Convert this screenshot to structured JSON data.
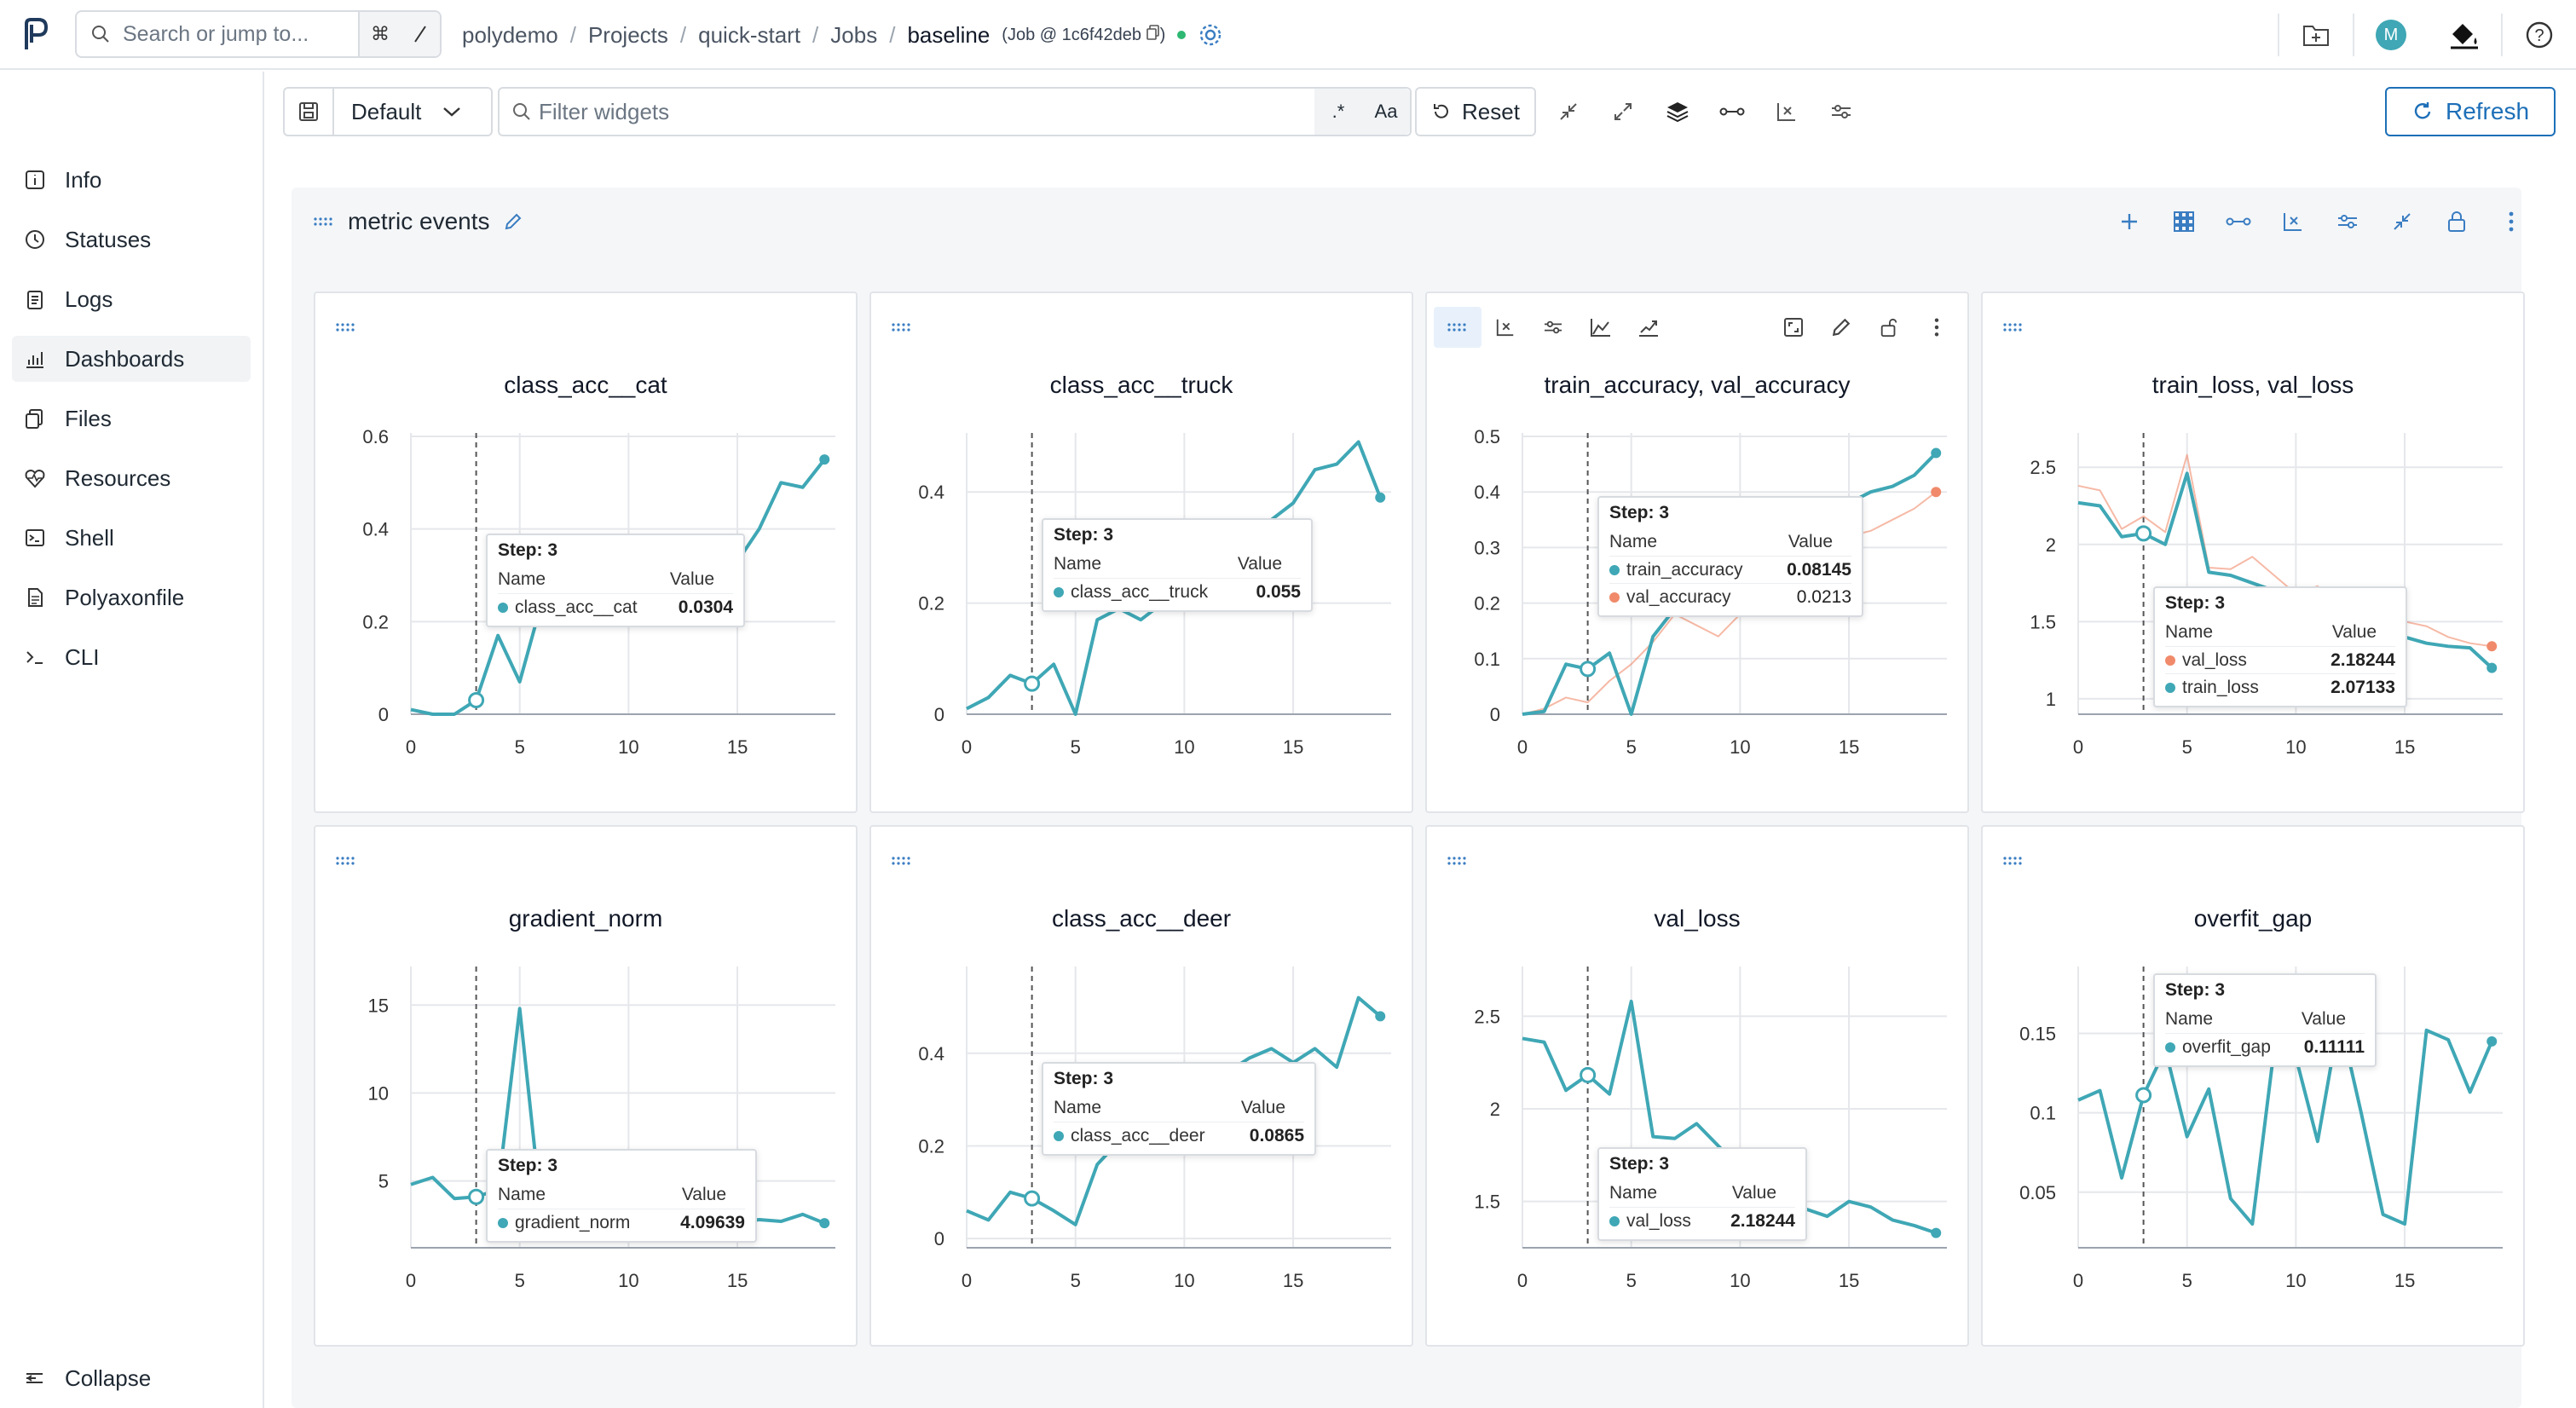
{
  "header": {
    "search_placeholder": "Search or jump to...",
    "search_shortcut": "⌘",
    "breadcrumb": [
      "polydemo",
      "Projects",
      "quick-start",
      "Jobs"
    ],
    "current": "baseline",
    "job_tag": "(Job @ 1c6f42deb",
    "avatar_letter": "M"
  },
  "sidebar": {
    "items": [
      {
        "label": "Info",
        "icon": "info-icon"
      },
      {
        "label": "Statuses",
        "icon": "clock-icon"
      },
      {
        "label": "Logs",
        "icon": "clipboard-icon"
      },
      {
        "label": "Dashboards",
        "icon": "chart-icon"
      },
      {
        "label": "Files",
        "icon": "files-icon"
      },
      {
        "label": "Resources",
        "icon": "heart-pulse-icon"
      },
      {
        "label": "Shell",
        "icon": "terminal-icon"
      },
      {
        "label": "Polyaxonfile",
        "icon": "document-icon"
      },
      {
        "label": "CLI",
        "icon": "prompt-icon"
      }
    ],
    "active": "Dashboards",
    "collapse_label": "Collapse"
  },
  "toolbar": {
    "view_select": "Default",
    "filter_placeholder": "Filter widgets",
    "case_label": "Aa",
    "reset_label": "Reset",
    "refresh_label": "Refresh"
  },
  "section": {
    "title": "metric events"
  },
  "colors": {
    "teal": "#3fa7b5",
    "salmon": "#f08a6a",
    "accent": "#1d6fb8"
  },
  "widgets": [
    {
      "title": "class_acc__cat",
      "tooltip": {
        "step": "Step: 3",
        "name_header": "Name",
        "value_header": "Value",
        "rows": [
          {
            "name": "class_acc__cat",
            "value": "0.0304",
            "color": "#3fa7b5"
          }
        ]
      },
      "chart_data": {
        "type": "line",
        "x": [
          0,
          1,
          2,
          3,
          4,
          5,
          6,
          7,
          8,
          9,
          10,
          11,
          12,
          13,
          14,
          15,
          16,
          17,
          18,
          19
        ],
        "xticks": [
          "0",
          "5",
          "10",
          "15"
        ],
        "yticks": [
          "0",
          "0.2",
          "0.4",
          "0.6"
        ],
        "ylim": [
          0,
          0.6
        ],
        "series": [
          {
            "name": "class_acc__cat",
            "color": "#3fa7b5",
            "values": [
              0.01,
              0.0,
              0.0,
              0.0304,
              0.17,
              0.07,
              0.24,
              0.22,
              0.25,
              0.26,
              0.28,
              0.27,
              0.3,
              0.28,
              0.3,
              0.33,
              0.4,
              0.5,
              0.49,
              0.55
            ]
          }
        ]
      }
    },
    {
      "title": "class_acc__truck",
      "tooltip": {
        "step": "Step: 3",
        "name_header": "Name",
        "value_header": "Value",
        "rows": [
          {
            "name": "class_acc__truck",
            "value": "0.055",
            "color": "#3fa7b5"
          }
        ]
      },
      "chart_data": {
        "type": "line",
        "x": [
          0,
          1,
          2,
          3,
          4,
          5,
          6,
          7,
          8,
          9,
          10,
          11,
          12,
          13,
          14,
          15,
          16,
          17,
          18,
          19
        ],
        "xticks": [
          "0",
          "5",
          "10",
          "15"
        ],
        "yticks": [
          "0",
          "0.2",
          "0.4"
        ],
        "ylim": [
          0,
          0.5
        ],
        "series": [
          {
            "name": "class_acc__truck",
            "color": "#3fa7b5",
            "values": [
              0.01,
              0.03,
              0.07,
              0.055,
              0.09,
              0.0,
              0.17,
              0.19,
              0.17,
              0.2,
              0.22,
              0.25,
              0.27,
              0.3,
              0.35,
              0.38,
              0.44,
              0.45,
              0.49,
              0.39
            ]
          }
        ]
      }
    },
    {
      "title": "train_accuracy, val_accuracy",
      "tooltip": {
        "step": "Step: 3",
        "name_header": "Name",
        "value_header": "Value",
        "rows": [
          {
            "name": "train_accuracy",
            "value": "0.08145",
            "color": "#3fa7b5"
          },
          {
            "name": "val_accuracy",
            "value": "0.0213",
            "color": "#f08a6a"
          }
        ]
      },
      "chart_data": {
        "type": "line",
        "x": [
          0,
          1,
          2,
          3,
          4,
          5,
          6,
          7,
          8,
          9,
          10,
          11,
          12,
          13,
          14,
          15,
          16,
          17,
          18,
          19
        ],
        "xticks": [
          "0",
          "5",
          "10",
          "15"
        ],
        "yticks": [
          "0",
          "0.1",
          "0.2",
          "0.3",
          "0.4",
          "0.5"
        ],
        "ylim": [
          0,
          0.5
        ],
        "series": [
          {
            "name": "train_accuracy",
            "color": "#3fa7b5",
            "values": [
              0.0,
              0.005,
              0.09,
              0.08145,
              0.11,
              0.0,
              0.14,
              0.19,
              0.22,
              0.25,
              0.27,
              0.29,
              0.31,
              0.33,
              0.36,
              0.38,
              0.4,
              0.41,
              0.43,
              0.47
            ]
          },
          {
            "name": "val_accuracy",
            "color": "#f08a6a",
            "values": [
              0.0,
              0.01,
              0.03,
              0.0213,
              0.06,
              0.09,
              0.13,
              0.18,
              0.16,
              0.14,
              0.18,
              0.22,
              0.25,
              0.28,
              0.3,
              0.32,
              0.33,
              0.35,
              0.37,
              0.4
            ]
          }
        ]
      }
    },
    {
      "title": "train_loss, val_loss",
      "tooltip": {
        "step": "Step: 3",
        "name_header": "Name",
        "value_header": "Value",
        "rows": [
          {
            "name": "val_loss",
            "value": "2.18244",
            "color": "#f08a6a"
          },
          {
            "name": "train_loss",
            "value": "2.07133",
            "color": "#3fa7b5"
          }
        ]
      },
      "chart_data": {
        "type": "line",
        "x": [
          0,
          1,
          2,
          3,
          4,
          5,
          6,
          7,
          8,
          9,
          10,
          11,
          12,
          13,
          14,
          15,
          16,
          17,
          18,
          19
        ],
        "xticks": [
          "0",
          "5",
          "10",
          "15"
        ],
        "yticks": [
          "1",
          "1.5",
          "2",
          "2.5"
        ],
        "ylim": [
          0.9,
          2.7
        ],
        "series": [
          {
            "name": "val_loss",
            "color": "#f08a6a",
            "values": [
              2.38,
              2.35,
              2.1,
              2.18244,
              2.08,
              2.58,
              1.85,
              1.84,
              1.92,
              1.8,
              1.68,
              1.73,
              1.55,
              1.46,
              1.42,
              1.5,
              1.47,
              1.4,
              1.36,
              1.34
            ]
          },
          {
            "name": "train_loss",
            "color": "#3fa7b5",
            "values": [
              2.27,
              2.25,
              2.05,
              2.07133,
              2.0,
              2.46,
              1.82,
              1.8,
              1.75,
              1.7,
              1.63,
              1.6,
              1.55,
              1.5,
              1.45,
              1.4,
              1.36,
              1.34,
              1.33,
              1.2
            ]
          }
        ]
      }
    },
    {
      "title": "gradient_norm",
      "tooltip": {
        "step": "Step: 3",
        "name_header": "Name",
        "value_header": "Value",
        "rows": [
          {
            "name": "gradient_norm",
            "value": "4.09639",
            "color": "#3fa7b5"
          }
        ]
      },
      "chart_data": {
        "type": "line",
        "x": [
          0,
          1,
          2,
          3,
          4,
          5,
          6,
          7,
          8,
          9,
          10,
          11,
          12,
          13,
          14,
          15,
          16,
          17,
          18,
          19
        ],
        "xticks": [
          "0",
          "5",
          "10",
          "15"
        ],
        "yticks": [
          "5",
          "10",
          "15"
        ],
        "ylim": [
          1.2,
          17
        ],
        "series": [
          {
            "name": "gradient_norm",
            "color": "#3fa7b5",
            "values": [
              4.8,
              5.2,
              4.0,
              4.09639,
              4.5,
              14.8,
              3.2,
              3.0,
              3.1,
              3.0,
              2.8,
              2.9,
              2.7,
              2.6,
              2.5,
              2.6,
              2.8,
              2.7,
              3.1,
              2.6
            ]
          }
        ]
      }
    },
    {
      "title": "class_acc__deer",
      "tooltip": {
        "step": "Step: 3",
        "name_header": "Name",
        "value_header": "Value",
        "rows": [
          {
            "name": "class_acc__deer",
            "value": "0.0865",
            "color": "#3fa7b5"
          }
        ]
      },
      "chart_data": {
        "type": "line",
        "x": [
          0,
          1,
          2,
          3,
          4,
          5,
          6,
          7,
          8,
          9,
          10,
          11,
          12,
          13,
          14,
          15,
          16,
          17,
          18,
          19
        ],
        "xticks": [
          "0",
          "5",
          "10",
          "15"
        ],
        "yticks": [
          "0",
          "0.2",
          "0.4"
        ],
        "ylim": [
          -0.02,
          0.58
        ],
        "series": [
          {
            "name": "class_acc__deer",
            "color": "#3fa7b5",
            "values": [
              0.06,
              0.04,
              0.1,
              0.0865,
              0.06,
              0.03,
              0.16,
              0.21,
              0.2,
              0.24,
              0.28,
              0.3,
              0.36,
              0.39,
              0.41,
              0.38,
              0.41,
              0.37,
              0.52,
              0.48
            ]
          }
        ]
      }
    },
    {
      "title": "val_loss",
      "tooltip": {
        "step": "Step: 3",
        "name_header": "Name",
        "value_header": "Value",
        "rows": [
          {
            "name": "val_loss",
            "value": "2.18244",
            "color": "#3fa7b5"
          }
        ]
      },
      "chart_data": {
        "type": "line",
        "x": [
          0,
          1,
          2,
          3,
          4,
          5,
          6,
          7,
          8,
          9,
          10,
          11,
          12,
          13,
          14,
          15,
          16,
          17,
          18,
          19
        ],
        "xticks": [
          "0",
          "5",
          "10",
          "15"
        ],
        "yticks": [
          "1.5",
          "2",
          "2.5"
        ],
        "ylim": [
          1.25,
          2.75
        ],
        "series": [
          {
            "name": "val_loss",
            "color": "#3fa7b5",
            "values": [
              2.38,
              2.36,
              2.1,
              2.18244,
              2.08,
              2.58,
              1.85,
              1.84,
              1.92,
              1.8,
              1.68,
              1.73,
              1.55,
              1.46,
              1.42,
              1.5,
              1.47,
              1.4,
              1.37,
              1.33
            ]
          }
        ]
      }
    },
    {
      "title": "overfit_gap",
      "tooltip": {
        "step": "Step: 3",
        "name_header": "Name",
        "value_header": "Value",
        "rows": [
          {
            "name": "overfit_gap",
            "value": "0.11111",
            "color": "#3fa7b5"
          }
        ]
      },
      "chart_data": {
        "type": "line",
        "x": [
          0,
          1,
          2,
          3,
          4,
          5,
          6,
          7,
          8,
          9,
          10,
          11,
          12,
          13,
          14,
          15,
          16,
          17,
          18,
          19
        ],
        "xticks": [
          "0",
          "5",
          "10",
          "15"
        ],
        "yticks": [
          "0.05",
          "0.1",
          "0.15"
        ],
        "ylim": [
          0.015,
          0.19
        ],
        "series": [
          {
            "name": "overfit_gap",
            "color": "#3fa7b5",
            "values": [
              0.108,
              0.114,
              0.059,
              0.11111,
              0.14,
              0.085,
              0.115,
              0.046,
              0.03,
              0.14,
              0.135,
              0.082,
              0.16,
              0.1,
              0.036,
              0.03,
              0.152,
              0.146,
              0.113,
              0.145
            ]
          }
        ]
      }
    }
  ]
}
